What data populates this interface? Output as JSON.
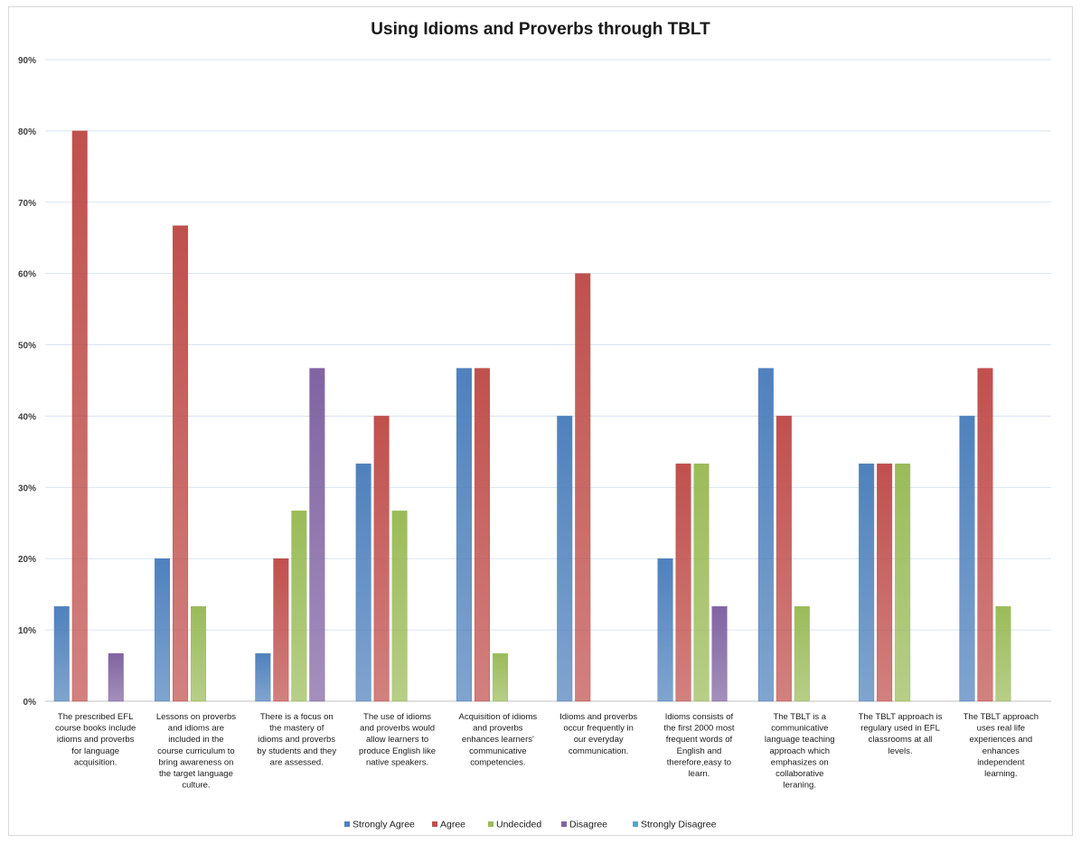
{
  "chart_data": {
    "type": "bar",
    "title": "Using Idioms and Proverbs through TBLT",
    "xlabel": "",
    "ylabel": "",
    "ylim": [
      0,
      0.9
    ],
    "yticks": [
      "0%",
      "10%",
      "20%",
      "30%",
      "40%",
      "50%",
      "60%",
      "70%",
      "80%",
      "90%"
    ],
    "grid": true,
    "legend_position": "bottom",
    "categories": [
      [
        "The prescribed EFL",
        "course books include",
        "idioms and proverbs",
        "for language",
        "acquisition."
      ],
      [
        "Lessons on proverbs",
        "and idioms are",
        "included in the",
        "course curriculum to",
        "bring awareness on",
        "the target language",
        "culture."
      ],
      [
        "There is a focus on",
        "the mastery of",
        "idioms and proverbs",
        "by students and they",
        "are assessed."
      ],
      [
        "The use of idioms",
        "and proverbs would",
        "allow learners to",
        "produce English like",
        "native speakers."
      ],
      [
        "Acquisition of idioms",
        "and proverbs",
        "enhances learners'",
        "communicative",
        "competencies."
      ],
      [
        "Idioms and proverbs",
        "occur frequently in",
        "our everyday",
        "communication."
      ],
      [
        "Idioms consists of",
        "the first 2000 most",
        "frequent words of",
        "English and",
        "therefore,easy to",
        "learn."
      ],
      [
        "The TBLT is a",
        "communicative",
        "language teaching",
        "approach which",
        "emphasizes on",
        "collaborative",
        "leraning."
      ],
      [
        "The TBLT approach is",
        "regulary used in EFL",
        "classrooms at all",
        "levels."
      ],
      [
        "The TBLT approach",
        "uses real life",
        "experiences and",
        "enhances",
        "independent",
        "learning."
      ]
    ],
    "series": [
      {
        "name": "Strongly Agree",
        "color": "#4f81bd",
        "values": [
          0.133,
          0.2,
          0.067,
          0.333,
          0.467,
          0.4,
          0.2,
          0.467,
          0.333,
          0.4
        ]
      },
      {
        "name": "Agree",
        "color": "#c0504d",
        "values": [
          0.8,
          0.667,
          0.2,
          0.4,
          0.467,
          0.6,
          0.333,
          0.4,
          0.333,
          0.467
        ]
      },
      {
        "name": "Undecided",
        "color": "#9bbb59",
        "values": [
          0,
          0.133,
          0.267,
          0.267,
          0.067,
          0,
          0.333,
          0.133,
          0.333,
          0.133
        ]
      },
      {
        "name": "Disagree",
        "color": "#8064a2",
        "values": [
          0.067,
          0,
          0.467,
          0,
          0,
          0,
          0.133,
          0,
          0,
          0
        ]
      },
      {
        "name": "Strongly Disagree",
        "color": "#4bacc6",
        "values": [
          0,
          0,
          0,
          0,
          0,
          0,
          0,
          0,
          0,
          0
        ]
      }
    ]
  }
}
